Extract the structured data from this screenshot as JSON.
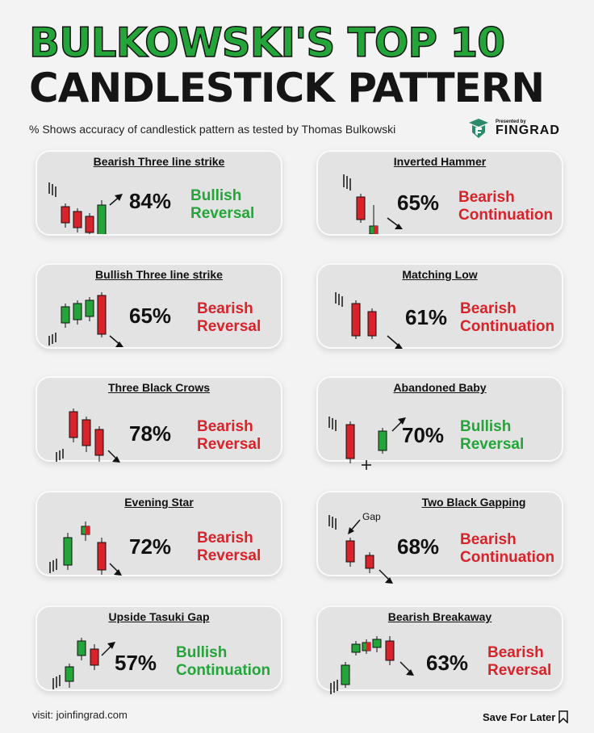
{
  "header": {
    "title_line1": "BULKOWSKI'S TOP 10",
    "title_line2": "CANDLESTICK PATTERN",
    "subtitle": "% Shows accuracy of candlestick pattern as tested by Thomas Bulkowski",
    "brand_presented": "Presented by",
    "brand_name": "FINGRAD"
  },
  "colors": {
    "bullish": "#23a53a",
    "bearish": "#d8232a",
    "title_green": "#23a53a"
  },
  "patterns": [
    {
      "name": "Bearish Three line strike",
      "accuracy": "84%",
      "result_line1": "Bullish",
      "result_line2": "Reversal"
    },
    {
      "name": "Inverted Hammer",
      "accuracy": "65%",
      "result_line1": "Bearish",
      "result_line2": "Continuation"
    },
    {
      "name": "Bullish Three line strike",
      "accuracy": "65%",
      "result_line1": "Bearish",
      "result_line2": "Reversal"
    },
    {
      "name": "Matching Low",
      "accuracy": "61%",
      "result_line1": "Bearish",
      "result_line2": "Continuation"
    },
    {
      "name": "Three Black Crows",
      "accuracy": "78%",
      "result_line1": "Bearish",
      "result_line2": "Reversal"
    },
    {
      "name": "Abandoned Baby",
      "accuracy": "70%",
      "result_line1": "Bullish",
      "result_line2": "Reversal"
    },
    {
      "name": "Evening Star",
      "accuracy": "72%",
      "result_line1": "Bearish",
      "result_line2": "Reversal"
    },
    {
      "name": "Two Black Gapping",
      "accuracy": "68%",
      "result_line1": "Bearish",
      "result_line2": "Continuation",
      "annotation": "Gap"
    },
    {
      "name": "Upside Tasuki Gap",
      "accuracy": "57%",
      "result_line1": "Bullish",
      "result_line2": "Continuation"
    },
    {
      "name": "Bearish Breakaway",
      "accuracy": "63%",
      "result_line1": "Bearish",
      "result_line2": "Reversal"
    }
  ],
  "footer": {
    "visit": "visit: joinfingrad.com",
    "save": "Save For Later"
  }
}
